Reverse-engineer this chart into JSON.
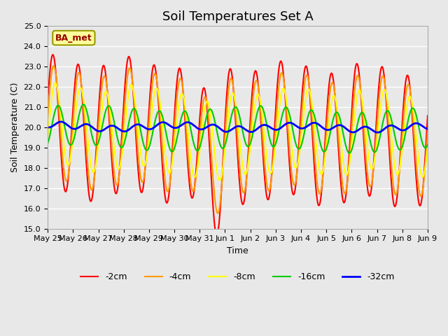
{
  "title": "Soil Temperatures Set A",
  "xlabel": "Time",
  "ylabel": "Soil Temperature (C)",
  "ylim": [
    15.0,
    25.0
  ],
  "yticks": [
    15.0,
    16.0,
    17.0,
    18.0,
    19.0,
    20.0,
    21.0,
    22.0,
    23.0,
    24.0,
    25.0
  ],
  "xtick_labels": [
    "May 25",
    "May 26",
    "May 27",
    "May 28",
    "May 29",
    "May 30",
    "May 31",
    "Jun 1",
    "Jun 2",
    "Jun 3",
    "Jun 4",
    "Jun 5",
    "Jun 6",
    "Jun 7",
    "Jun 8",
    "Jun 9"
  ],
  "legend_label": "BA_met",
  "series_labels": [
    "-2cm",
    "-4cm",
    "-8cm",
    "-16cm",
    "-32cm"
  ],
  "series_colors": [
    "#ff0000",
    "#ff9900",
    "#ffff00",
    "#00cc00",
    "#0000ff"
  ],
  "line_widths": [
    1.5,
    1.5,
    1.5,
    1.5,
    2.0
  ],
  "n_points": 800,
  "start_day": 0,
  "end_day": 15,
  "background_color": "#e8e8e8",
  "plot_bg_color": "#e8e8e8",
  "grid_color": "#ffffff",
  "title_fontsize": 13,
  "axis_fontsize": 9,
  "tick_fontsize": 8
}
